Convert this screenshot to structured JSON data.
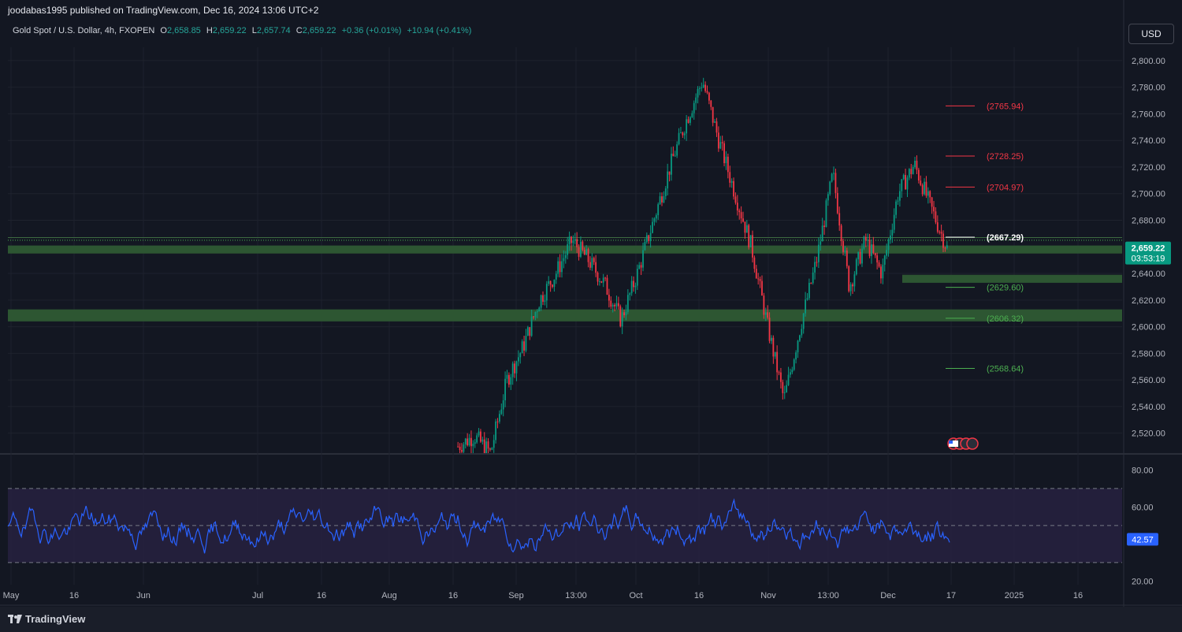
{
  "header": {
    "publisher": "joodabas1995 published on TradingView.com, Dec 16, 2024 13:06 UTC+2"
  },
  "legend": {
    "symbol": "Gold Spot / U.S. Dollar, 4h, FXOPEN",
    "o_label": "O",
    "o_value": "2,658.85",
    "h_label": "H",
    "h_value": "2,659.22",
    "l_label": "L",
    "l_value": "2,657.74",
    "c_label": "C",
    "c_value": "2,659.22",
    "change": "+0.36 (+0.01%)",
    "change2": "+10.94 (+0.41%)"
  },
  "currency_button": "USD",
  "price_axis": {
    "labels": [
      "2,800.00",
      "2,780.00",
      "2,760.00",
      "2,740.00",
      "2,720.00",
      "2,700.00",
      "2,680.00",
      "2,660.00",
      "2,640.00",
      "2,620.00",
      "2,600.00",
      "2,580.00",
      "2,560.00",
      "2,540.00",
      "2,520.00"
    ],
    "current_price": "2,659.22",
    "countdown": "03:53:19",
    "current_color": "#089981"
  },
  "rsi_axis": {
    "labels": [
      "80.00",
      "60.00",
      "20.00"
    ],
    "current": "42.57",
    "color": "#2962ff"
  },
  "time_axis": [
    "May",
    "16",
    "Jun",
    "Jul",
    "16",
    "Aug",
    "16",
    "Sep",
    "13:00",
    "Oct",
    "16",
    "Nov",
    "13:00",
    "Dec",
    "17",
    "2025",
    "16"
  ],
  "levels": [
    {
      "label": "(2765.94)",
      "color": "#f23645"
    },
    {
      "label": "(2728.25)",
      "color": "#f23645"
    },
    {
      "label": "(2704.97)",
      "color": "#f23645"
    },
    {
      "label": "(2667.29)",
      "color": "#ffffff"
    },
    {
      "label": "(2629.60)",
      "color": "#4caf50"
    },
    {
      "label": "(2606.32)",
      "color": "#4caf50"
    },
    {
      "label": "(2568.64)",
      "color": "#4caf50"
    }
  ],
  "footer": {
    "brand": "TradingView"
  },
  "chart_data": {
    "type": "candlestick",
    "price_axis_range": [
      2505,
      2810
    ],
    "rsi_axis_range": [
      18,
      87
    ],
    "support_zones": [
      [
        2655,
        2661
      ],
      [
        2633,
        2639
      ],
      [
        2604,
        2613
      ]
    ],
    "rsi_bands": [
      30,
      50,
      70
    ],
    "close_path": [
      [
        "Sep",
        2510
      ],
      [
        "Sep",
        2518
      ],
      [
        "Sep",
        2505
      ],
      [
        "13:00",
        2560
      ],
      [
        "13:00",
        2585
      ],
      [
        "13:00",
        2620
      ],
      [
        "13:00",
        2640
      ],
      [
        "Oct",
        2665
      ],
      [
        "Oct",
        2650
      ],
      [
        "Oct",
        2632
      ],
      [
        "16",
        2605
      ],
      [
        "16",
        2640
      ],
      [
        "16",
        2680
      ],
      [
        "16",
        2720
      ],
      [
        "16",
        2755
      ],
      [
        "Nov",
        2785
      ],
      [
        "Nov",
        2740
      ],
      [
        "Nov",
        2700
      ],
      [
        "Nov",
        2660
      ],
      [
        "13:00",
        2600
      ],
      [
        "13:00",
        2545
      ],
      [
        "13:00",
        2600
      ],
      [
        "13:00",
        2650
      ],
      [
        "Dec",
        2715
      ],
      [
        "Dec",
        2630
      ],
      [
        "Dec",
        2665
      ],
      [
        "Dec",
        2640
      ],
      [
        "17",
        2700
      ],
      [
        "17",
        2722
      ],
      [
        "17",
        2690
      ],
      [
        "17",
        2659
      ]
    ],
    "rsi_last": 42.57
  }
}
